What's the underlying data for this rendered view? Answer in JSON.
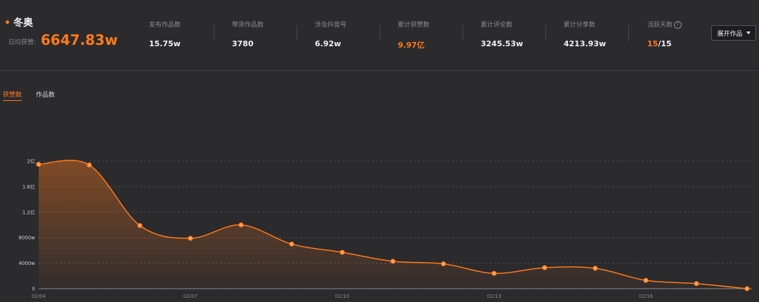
{
  "header": {
    "title": "冬奥",
    "avg_label": "日均获赞:",
    "avg_value": "6647.83w",
    "stats": [
      {
        "label": "发布作品数",
        "value": "15.75w",
        "accent": false
      },
      {
        "label": "带货作品数",
        "value": "3780",
        "accent": false
      },
      {
        "label": "涉及抖音号",
        "value": "6.92w",
        "accent": false
      },
      {
        "label": "累计获赞数",
        "value": "9.97亿",
        "accent": true
      },
      {
        "label": "累计评论数",
        "value": "3245.53w",
        "accent": false
      },
      {
        "label": "累计分享数",
        "value": "4213.93w",
        "accent": false
      }
    ],
    "active_days": {
      "label": "活跃天数",
      "value_highlight": "15",
      "value_rest": "/15",
      "icon": "help-icon"
    },
    "expand_button": "展开作品"
  },
  "tabs": [
    {
      "label": "获赞数",
      "active": true
    },
    {
      "label": "作品数",
      "active": false
    }
  ],
  "colors": {
    "accent": "#ff7a1a",
    "background": "#2b2a2d"
  },
  "chart_data": {
    "type": "area",
    "x": [
      "02/04",
      "02/05",
      "02/06",
      "02/07",
      "02/08",
      "02/09",
      "02/10",
      "02/11",
      "02/12",
      "02/13",
      "02/14",
      "02/15",
      "02/16",
      "02/17",
      "02/18"
    ],
    "x_tick_labels": [
      "02/04",
      "02/07",
      "02/10",
      "02/13",
      "02/16"
    ],
    "series": [
      {
        "values": [
          19500,
          19400,
          9900,
          7900,
          10000,
          7000,
          5700,
          4300,
          3900,
          2400,
          3300,
          3200,
          1300,
          800,
          0
        ]
      }
    ],
    "unit": "w",
    "y_ticks": [
      {
        "value": 0,
        "label": "0"
      },
      {
        "value": 4000,
        "label": "4000w"
      },
      {
        "value": 8000,
        "label": "8000w"
      },
      {
        "value": 12000,
        "label": "1.2亿"
      },
      {
        "value": 16000,
        "label": "1.6亿"
      },
      {
        "value": 20000,
        "label": "2亿"
      }
    ],
    "ylim": [
      0,
      20000
    ],
    "grid": true
  }
}
